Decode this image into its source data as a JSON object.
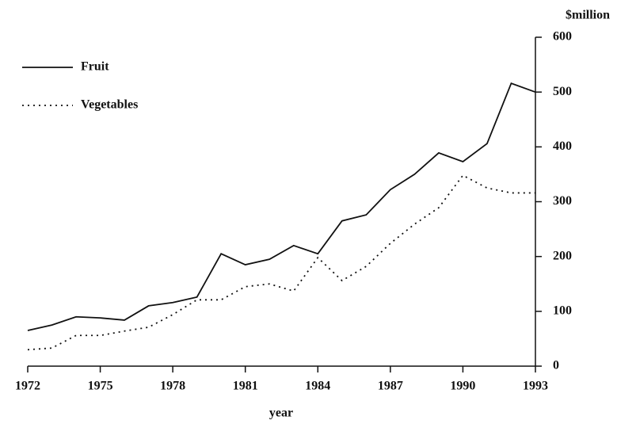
{
  "chart_data": {
    "type": "line",
    "y_axis_label": "$million",
    "x_axis_label": "year",
    "x": [
      1972,
      1973,
      1974,
      1975,
      1976,
      1977,
      1978,
      1979,
      1980,
      1981,
      1982,
      1983,
      1984,
      1985,
      1986,
      1987,
      1988,
      1989,
      1990,
      1991,
      1992,
      1993
    ],
    "series": [
      {
        "name": "Fruit",
        "color": "#111111",
        "style": "solid",
        "values": [
          65,
          75,
          90,
          88,
          84,
          110,
          116,
          126,
          205,
          185,
          195,
          220,
          205,
          265,
          276,
          322,
          350,
          389,
          373,
          406,
          516,
          500
        ]
      },
      {
        "name": "Vegetables",
        "color": "#111111",
        "style": "dotted",
        "values": [
          30,
          33,
          56,
          56,
          64,
          71,
          94,
          121,
          121,
          145,
          150,
          137,
          198,
          156,
          182,
          224,
          259,
          289,
          348,
          325,
          316,
          316
        ]
      }
    ],
    "xlim": [
      1972,
      1993
    ],
    "xticks": [
      1972,
      1975,
      1978,
      1981,
      1984,
      1987,
      1990,
      1993
    ],
    "ylim": [
      0,
      600
    ],
    "yticks": [
      0,
      100,
      200,
      300,
      400,
      500,
      600
    ],
    "y_axis_side": "right",
    "legend": "top-left",
    "grid": false
  }
}
